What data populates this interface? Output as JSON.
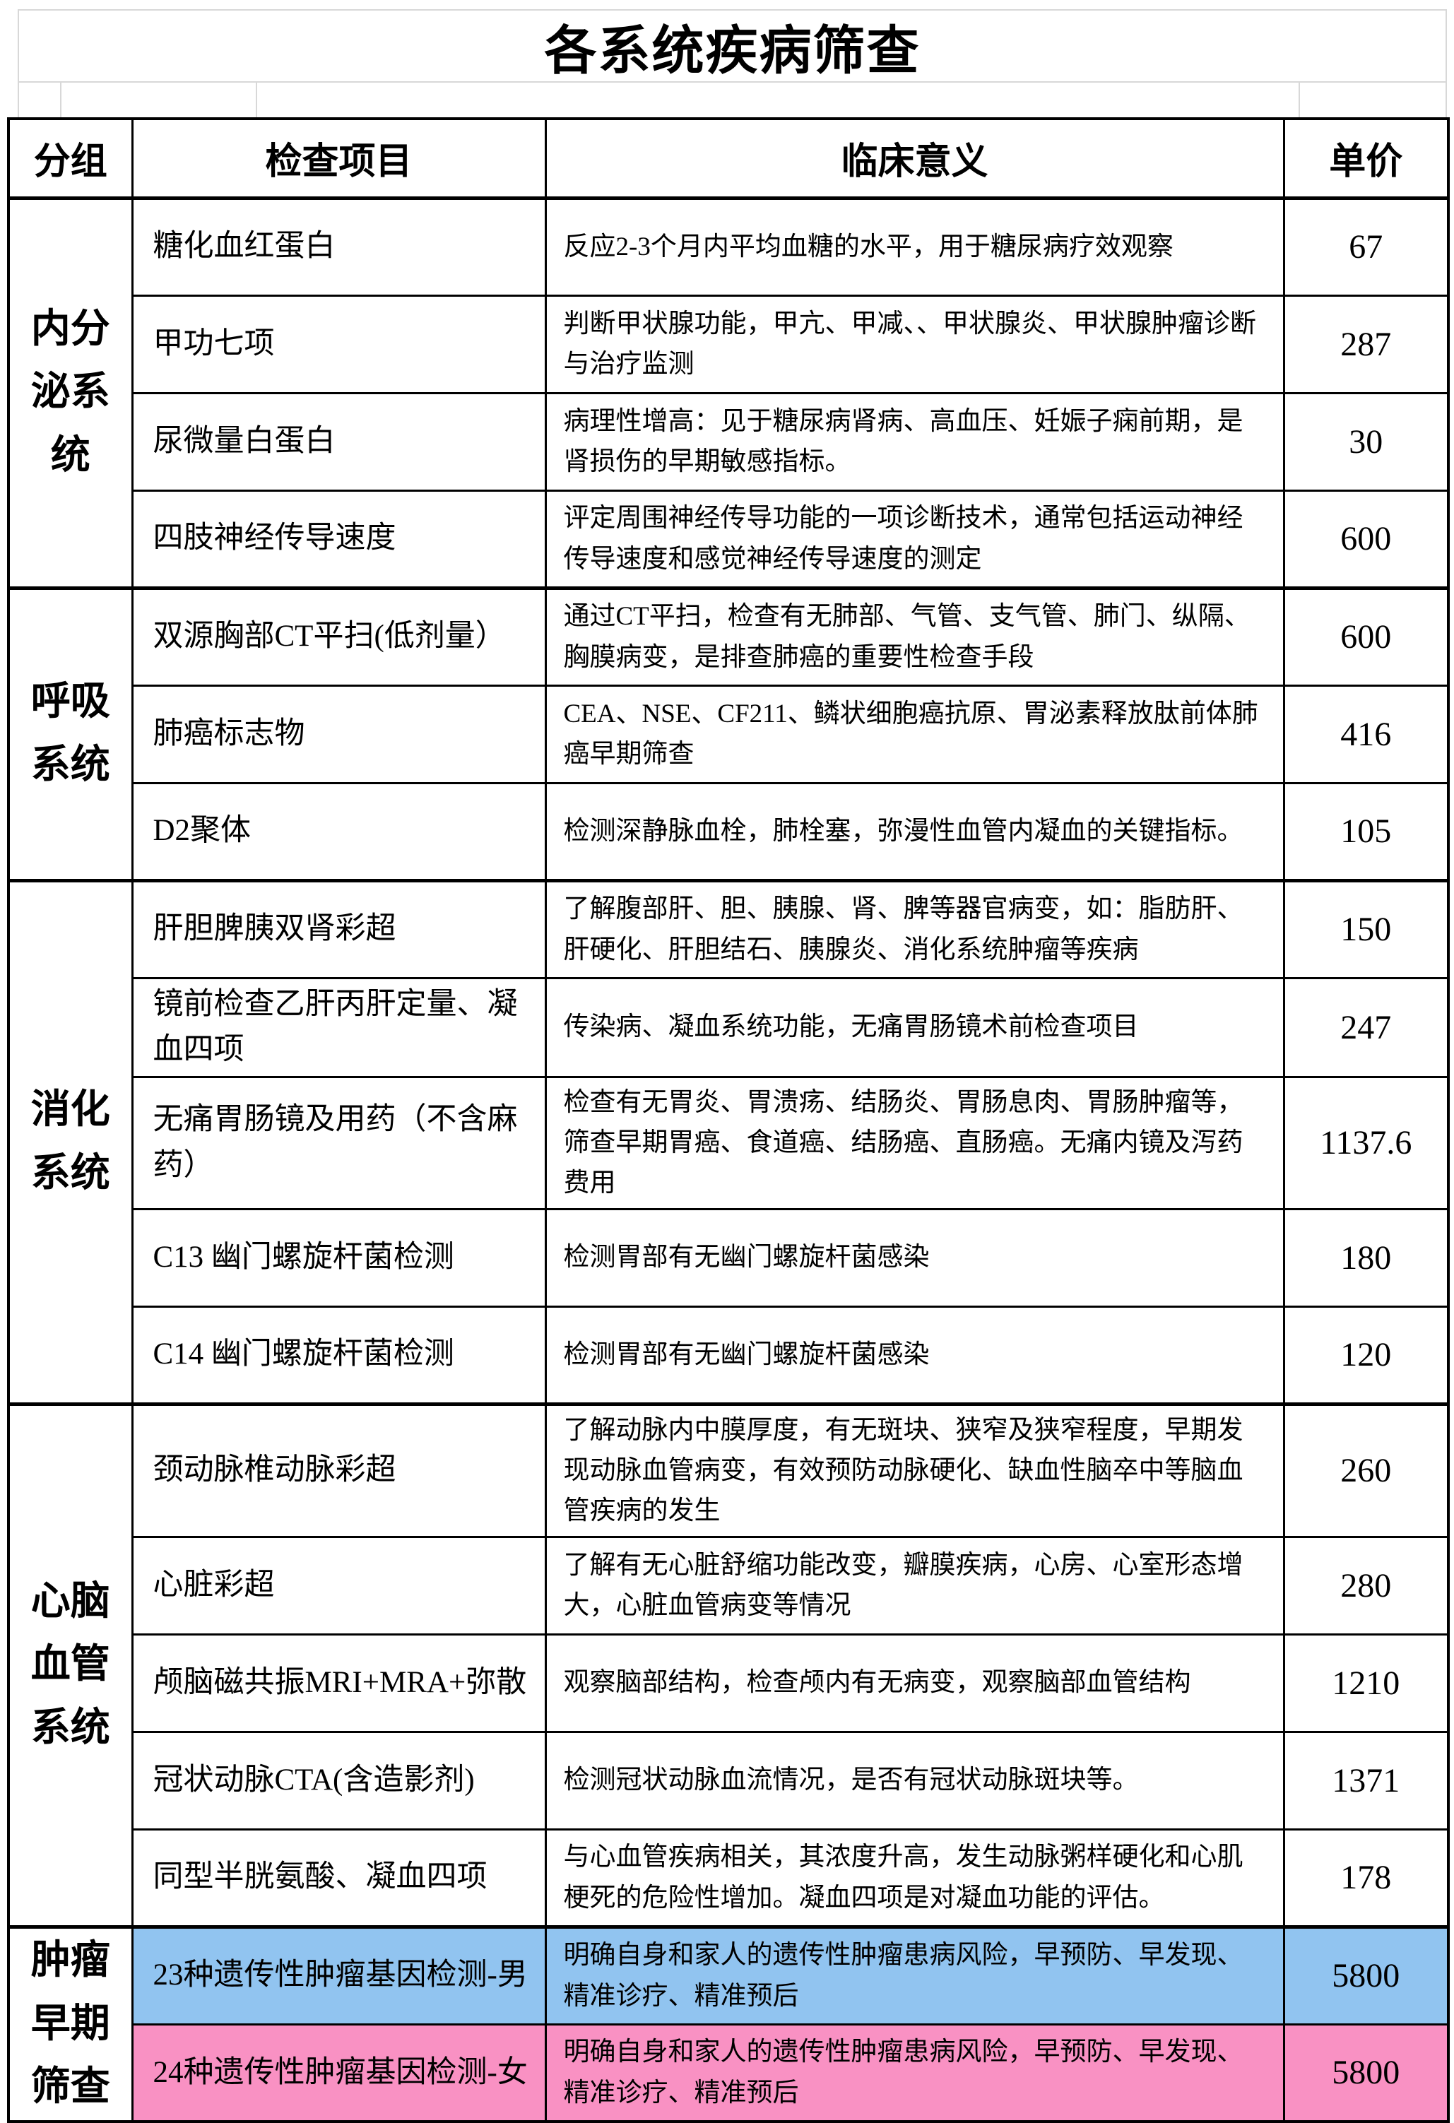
{
  "title": "各系统疾病筛查",
  "columns": [
    "分组",
    "检查项目",
    "临床意义",
    "单价"
  ],
  "colors": {
    "male": "#91c4f0",
    "female": "#f991c3",
    "border": "#000000",
    "gridline": "#d8d8d8"
  },
  "groups": [
    {
      "name": "内分泌系统",
      "rows": [
        {
          "item": "糖化血红蛋白",
          "meaning": "反应2-3个月内平均血糖的水平，用于糖尿病疗效观察",
          "price": "67"
        },
        {
          "item": "甲功七项",
          "meaning": "判断甲状腺功能，甲亢、甲减、、甲状腺炎、甲状腺肿瘤诊断与治疗监测",
          "price": "287"
        },
        {
          "item": "尿微量白蛋白",
          "meaning": "病理性增高：见于糖尿病肾病、高血压、妊娠子痫前期，是肾损伤的早期敏感指标。",
          "price": "30"
        },
        {
          "item": "四肢神经传导速度",
          "meaning": "评定周围神经传导功能的一项诊断技术，通常包括运动神经传导速度和感觉神经传导速度的测定",
          "price": "600"
        }
      ]
    },
    {
      "name": "呼吸系统",
      "rows": [
        {
          "item": "双源胸部CT平扫(低剂量）",
          "meaning": "通过CT平扫，检查有无肺部、气管、支气管、肺门、纵隔、胸膜病变，是排查肺癌的重要性检查手段",
          "price": "600"
        },
        {
          "item": "肺癌标志物",
          "meaning": "CEA、NSE、CF211、鳞状细胞癌抗原、胃泌素释放肽前体肺癌早期筛查",
          "price": "416"
        },
        {
          "item": "D2聚体",
          "meaning": "检测深静脉血栓，肺栓塞，弥漫性血管内凝血的关键指标。",
          "price": "105"
        }
      ]
    },
    {
      "name": "消化系统",
      "rows": [
        {
          "item": "肝胆脾胰双肾彩超",
          "meaning": "了解腹部肝、胆、胰腺、肾、脾等器官病变，如：脂肪肝、肝硬化、肝胆结石、胰腺炎、消化系统肿瘤等疾病",
          "price": "150"
        },
        {
          "item": "镜前检查乙肝丙肝定量、凝血四项",
          "meaning": "传染病、凝血系统功能，无痛胃肠镜术前检查项目",
          "price": "247"
        },
        {
          "item": "无痛胃肠镜及用药（不含麻药）",
          "meaning": "检查有无胃炎、胃溃疡、结肠炎、胃肠息肉、胃肠肿瘤等，筛查早期胃癌、食道癌、结肠癌、直肠癌。无痛内镜及泻药费用",
          "price": "1137.6"
        },
        {
          "item": "C13 幽门螺旋杆菌检测",
          "meaning": "检测胃部有无幽门螺旋杆菌感染",
          "price": "180"
        },
        {
          "item": "C14 幽门螺旋杆菌检测",
          "meaning": "检测胃部有无幽门螺旋杆菌感染",
          "price": "120"
        }
      ]
    },
    {
      "name": "心脑血管系统",
      "rows": [
        {
          "item": "颈动脉椎动脉彩超",
          "meaning": "了解动脉内中膜厚度，有无斑块、狭窄及狭窄程度，早期发现动脉血管病变，有效预防动脉硬化、缺血性脑卒中等脑血管疾病的发生",
          "price": "260"
        },
        {
          "item": "心脏彩超",
          "meaning": "了解有无心脏舒缩功能改变，瓣膜疾病，心房、心室形态增大，心脏血管病变等情况",
          "price": "280"
        },
        {
          "item": "颅脑磁共振MRI+MRA+弥散",
          "meaning": "观察脑部结构，检查颅内有无病变，观察脑部血管结构",
          "price": "1210"
        },
        {
          "item": "冠状动脉CTA(含造影剂)",
          "meaning": "检测冠状动脉血流情况，是否有冠状动脉斑块等。",
          "price": "1371"
        },
        {
          "item": "同型半胱氨酸、凝血四项",
          "meaning": "与心血管疾病相关，其浓度升高，发生动脉粥样硬化和心肌梗死的危险性增加。凝血四项是对凝血功能的评估。",
          "price": "178"
        }
      ]
    },
    {
      "name": "肿瘤早期筛查",
      "rows": [
        {
          "item": "23种遗传性肿瘤基因检测-男",
          "meaning": "明确自身和家人的遗传性肿瘤患病风险，早预防、早发现、精准诊疗、精准预后",
          "price": "5800",
          "highlight": "male"
        },
        {
          "item": "24种遗传性肿瘤基因检测-女",
          "meaning": "明确自身和家人的遗传性肿瘤患病风险，早预防、早发现、精准诊疗、精准预后",
          "price": "5800",
          "highlight": "female"
        }
      ]
    }
  ]
}
